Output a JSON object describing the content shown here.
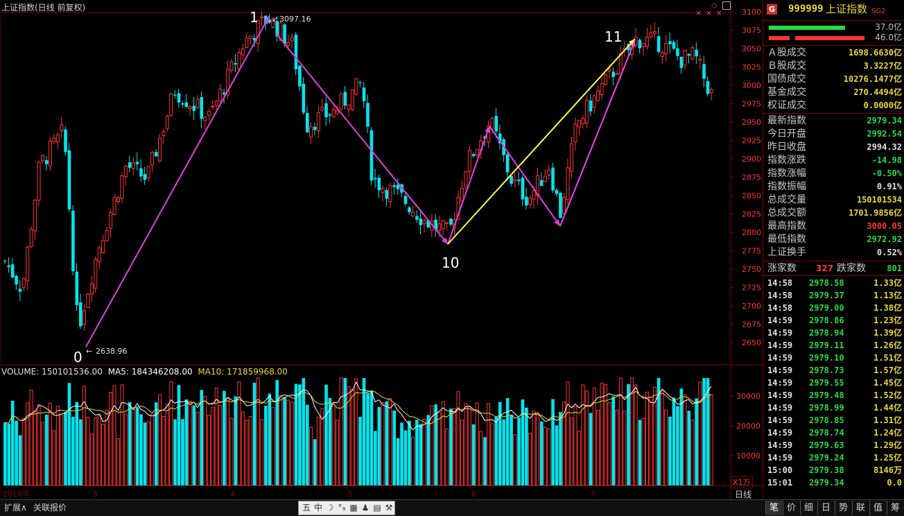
{
  "chart_title": "上证指数(日线 前复权)",
  "volume_header": {
    "volume": "VOLUME: 150101536.00",
    "ma5": "MA5: 184346208.00",
    "ma10": "MA10: 171859968.00"
  },
  "volume_unit": "X1万",
  "x_axis": {
    "year": "2016年",
    "months": [
      "3",
      "4",
      "5",
      "6",
      "7"
    ]
  },
  "period_button": "日线",
  "price_axis": [
    "3100",
    "3075",
    "3050",
    "3025",
    "3000",
    "2975",
    "2950",
    "2925",
    "2900",
    "2875",
    "2850",
    "2825",
    "2800",
    "2775",
    "2750",
    "2725",
    "2700",
    "2675",
    "2650"
  ],
  "volume_axis": [
    "30000",
    "20000",
    "10000"
  ],
  "wave_labels": [
    "0",
    "1",
    "10",
    "11"
  ],
  "extreme_labels": {
    "high": "3097.16",
    "low": "2638.96"
  },
  "marks": "× × ×",
  "colors": {
    "up": "#ff3232",
    "down": "#00e5ee",
    "wave_line": "#e040e0",
    "yellow_line": "#ffff40",
    "ma5": "#ffffff",
    "ma10": "#e8d838"
  },
  "panel": {
    "badge": "G",
    "code": "999999",
    "name": "上证指数",
    "suffix": "SG2",
    "bar_values": {
      "green": "37.0亿",
      "red": "46.0亿"
    },
    "turnover": [
      {
        "label": "Ａ股成交",
        "value": "1698.6630亿"
      },
      {
        "label": "Ｂ股成交",
        "value": "3.3227亿"
      },
      {
        "label": "国债成交",
        "value": "10276.1477亿"
      },
      {
        "label": "基金成交",
        "value": "270.4494亿"
      },
      {
        "label": "权证成交",
        "value": "0.0000亿"
      }
    ],
    "quote": [
      {
        "label": "最新指数",
        "value": "2979.34",
        "color": "#22dd44"
      },
      {
        "label": "今日开盘",
        "value": "2992.54",
        "color": "#22dd44"
      },
      {
        "label": "昨日收盘",
        "value": "2994.32",
        "color": "#e0e0e0"
      },
      {
        "label": "指数涨跌",
        "value": "-14.98",
        "color": "#22dd44"
      },
      {
        "label": "指数涨幅",
        "value": "-0.50%",
        "color": "#22dd44"
      },
      {
        "label": "指数振幅",
        "value": "0.91%",
        "color": "#e0e0e0"
      },
      {
        "label": "总成交量",
        "value": "150101534",
        "color": "#e8d838"
      },
      {
        "label": "总成交额",
        "value": "1701.9856亿",
        "color": "#e8d838"
      },
      {
        "label": "最高指数",
        "value": "3000.05",
        "color": "#ff3232"
      },
      {
        "label": "最低指数",
        "value": "2972.92",
        "color": "#22dd44"
      },
      {
        "label": "上证换手",
        "value": "0.52%",
        "color": "#e0e0e0"
      }
    ],
    "breadth": {
      "up_label": "涨家数",
      "up_value": "327",
      "down_label": "跌家数",
      "down_value": "801"
    },
    "ticks": [
      {
        "time": "14:58",
        "price": "2978.58",
        "vol": "1.33亿"
      },
      {
        "time": "14:58",
        "price": "2979.37",
        "vol": "1.13亿"
      },
      {
        "time": "14:58",
        "price": "2979.00",
        "vol": "1.38亿"
      },
      {
        "time": "14:59",
        "price": "2978.86",
        "vol": "1.23亿"
      },
      {
        "time": "14:59",
        "price": "2978.94",
        "vol": "1.39亿"
      },
      {
        "time": "14:59",
        "price": "2979.11",
        "vol": "1.26亿"
      },
      {
        "time": "14:59",
        "price": "2979.10",
        "vol": "1.51亿"
      },
      {
        "time": "14:59",
        "price": "2978.73",
        "vol": "1.57亿"
      },
      {
        "time": "14:59",
        "price": "2979.55",
        "vol": "1.45亿"
      },
      {
        "time": "14:59",
        "price": "2979.48",
        "vol": "1.52亿"
      },
      {
        "time": "14:59",
        "price": "2978.99",
        "vol": "1.44亿"
      },
      {
        "time": "14:59",
        "price": "2978.85",
        "vol": "1.31亿"
      },
      {
        "time": "14:59",
        "price": "2978.74",
        "vol": "1.24亿"
      },
      {
        "time": "14:59",
        "price": "2979.63",
        "vol": "1.29亿"
      },
      {
        "time": "14:59",
        "price": "2979.24",
        "vol": "1.25亿"
      },
      {
        "time": "15:00",
        "price": "2979.38",
        "vol": "8146万"
      },
      {
        "time": "15:01",
        "price": "2979.34",
        "vol": "0.0"
      }
    ]
  },
  "bottom": {
    "left_buttons": [
      "扩展∧",
      "关联报价"
    ],
    "tools": [
      "五",
      "中",
      "☽",
      "°₉",
      "▦",
      "♟",
      "▤",
      "⚒"
    ],
    "tabs": [
      "笔",
      "价",
      "细",
      "日",
      "势",
      "联",
      "值",
      "筹"
    ]
  },
  "chart_data": {
    "type": "candlestick",
    "title": "上证指数(日线 前复权)",
    "y_range": [
      2625,
      3110
    ],
    "wave_points": [
      {
        "label": "0",
        "value": 2638.96
      },
      {
        "label": "1",
        "value": 3097.16
      },
      {
        "label": "10",
        "value": 2780
      },
      {
        "label": "11",
        "value": 3065
      }
    ],
    "last_close": 2979.34,
    "ma5_volume": 184346208,
    "ma10_volume": 171859968
  }
}
